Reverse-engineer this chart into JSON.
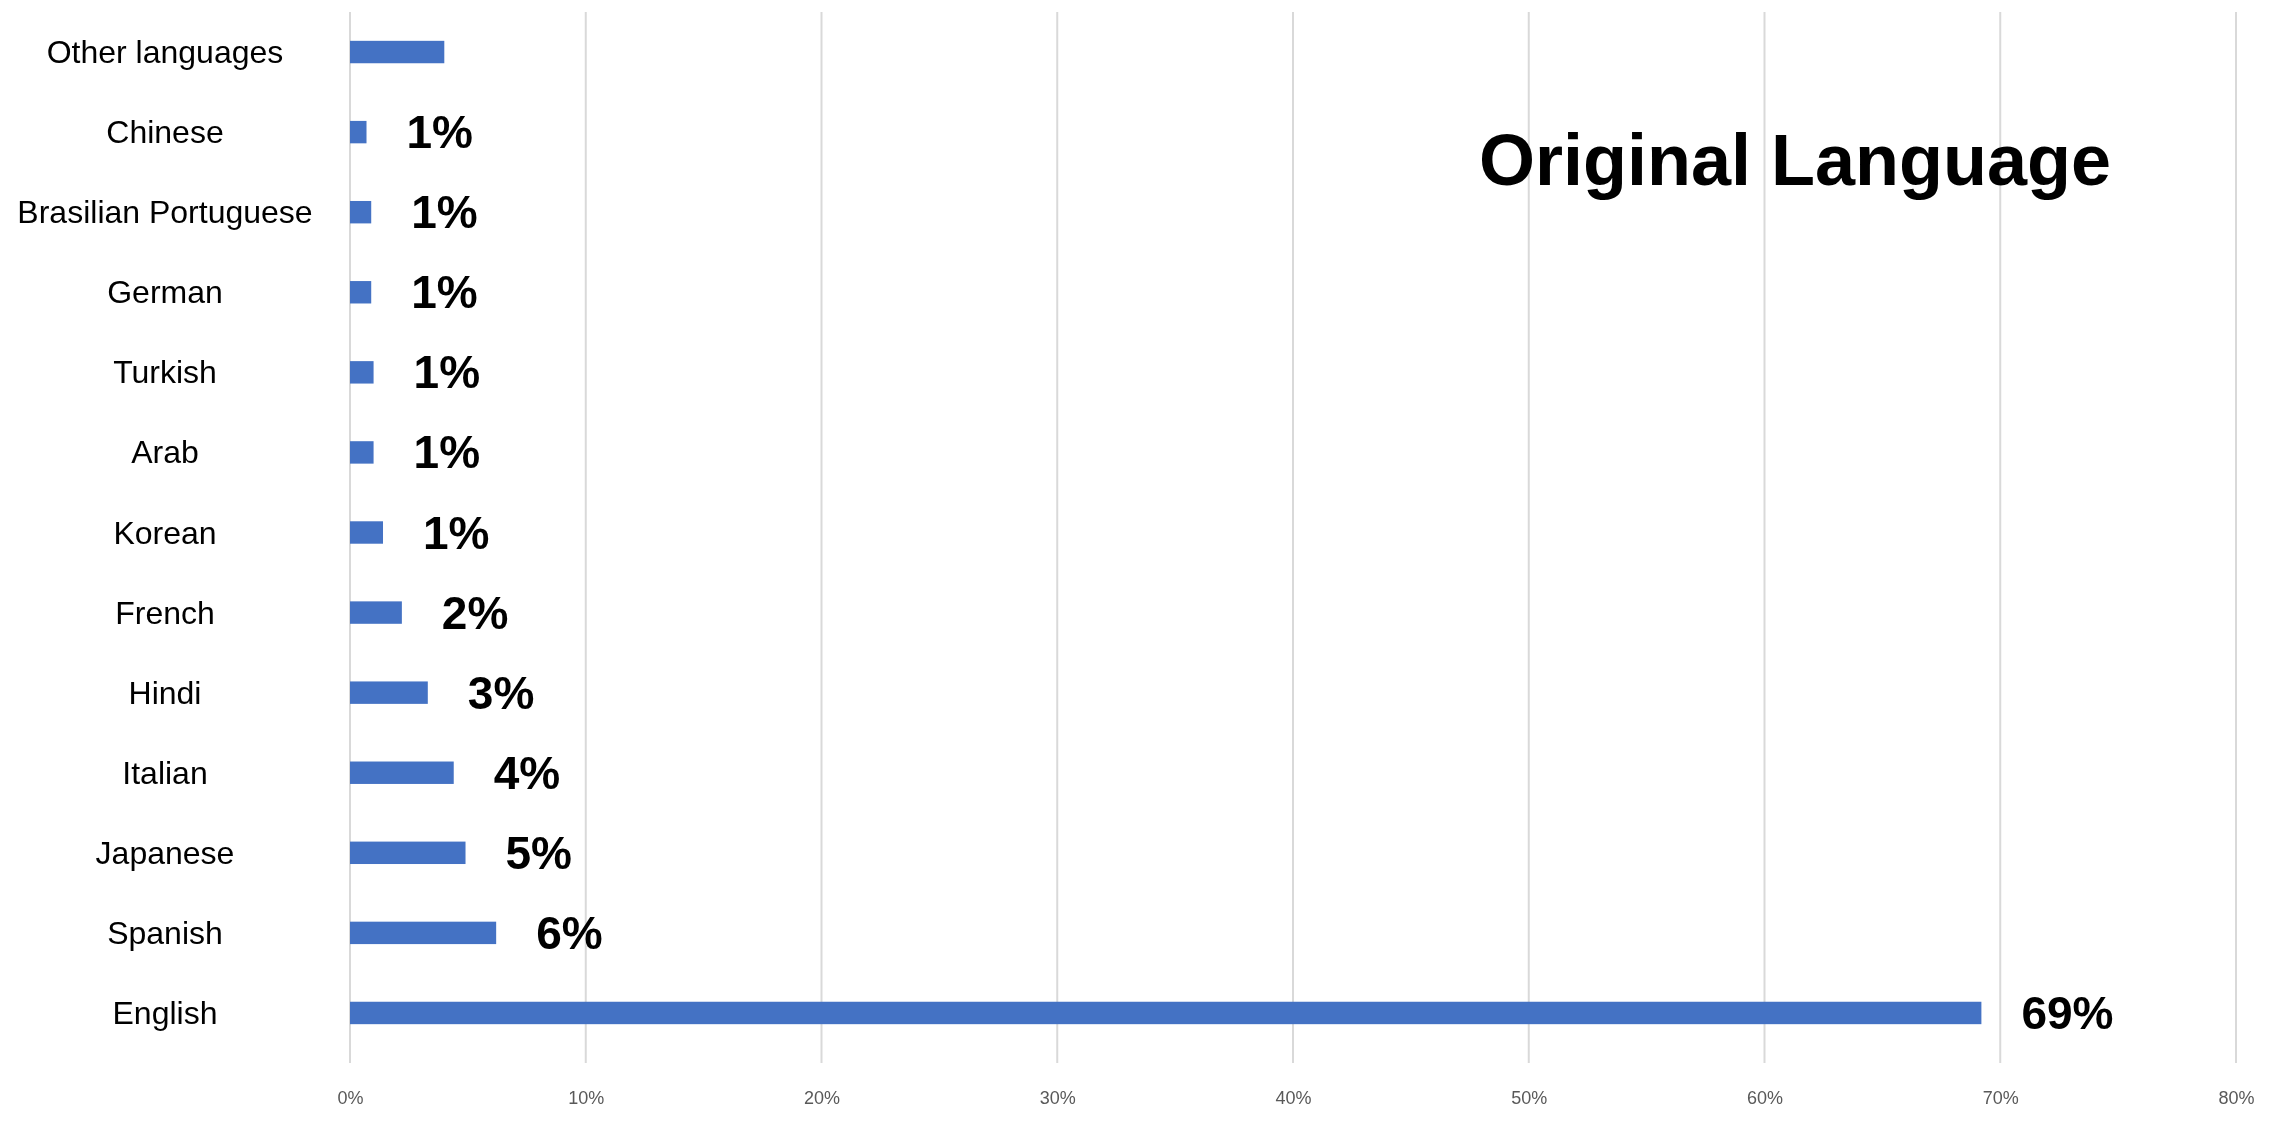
{
  "chart_data": {
    "type": "bar",
    "orientation": "horizontal",
    "title": "Original Language",
    "categories": [
      "Other languages",
      "Chinese",
      "Brasilian Portuguese",
      "German",
      "Turkish",
      "Arab",
      "Korean",
      "French",
      "Hindi",
      "Italian",
      "Japanese",
      "Spanish",
      "English"
    ],
    "values": [
      4.0,
      0.7,
      0.9,
      0.9,
      1.0,
      1.0,
      1.4,
      2.2,
      3.3,
      4.4,
      4.9,
      6.2,
      69.2
    ],
    "value_labels": [
      null,
      "1%",
      "1%",
      "1%",
      "1%",
      "1%",
      "1%",
      "2%",
      "3%",
      "4%",
      "5%",
      "6%",
      "69%"
    ],
    "color": "#4472c4",
    "xlim": [
      0,
      80
    ],
    "xticks": [
      {
        "value": 0,
        "label": "0%"
      },
      {
        "value": 10,
        "label": "10%"
      },
      {
        "value": 20,
        "label": "20%"
      },
      {
        "value": 30,
        "label": "30%"
      },
      {
        "value": 40,
        "label": "40%"
      },
      {
        "value": 50,
        "label": "50%"
      },
      {
        "value": 60,
        "label": "60%"
      },
      {
        "value": 70,
        "label": "70%"
      },
      {
        "value": 80,
        "label": "80%"
      }
    ],
    "grid": "x"
  }
}
